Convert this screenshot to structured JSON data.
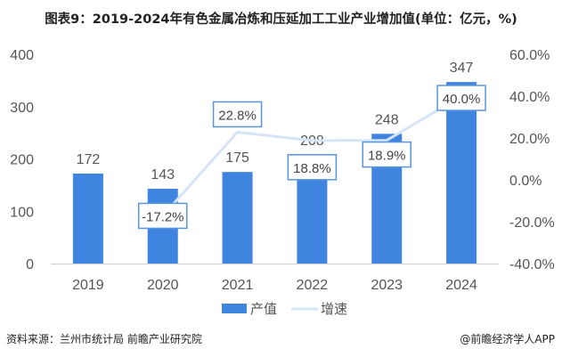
{
  "title": "图表9：2019-2024年有色金属冶炼和压延加工工业产业增加值(单位：亿元，%)",
  "source": "资料来源：兰州市统计局 前瞻产业研究院",
  "credit": "@前瞻经济学人APP",
  "colors": {
    "bar": "#3f85e0",
    "line": "#d6e4f7",
    "label_border": "#5a94e0"
  },
  "chart_data": {
    "type": "bar+line",
    "categories": [
      "2019",
      "2020",
      "2021",
      "2022",
      "2023",
      "2024"
    ],
    "series": [
      {
        "name": "产值",
        "type": "bar",
        "axis": "left",
        "values": [
          172,
          143,
          175,
          208,
          248,
          347
        ],
        "labels": [
          "172",
          "143",
          "175",
          "208",
          "248",
          "347"
        ]
      },
      {
        "name": "增速",
        "type": "line",
        "axis": "right",
        "values": [
          null,
          -17.2,
          22.8,
          18.8,
          18.9,
          40.0
        ],
        "labels": [
          "",
          "-17.2%",
          "22.8%",
          "18.8%",
          "18.9%",
          "40.0%"
        ]
      }
    ],
    "left_axis": {
      "ylim": [
        0,
        400
      ],
      "ticks": [
        "0",
        "100",
        "200",
        "300",
        "400"
      ]
    },
    "right_axis": {
      "ylim": [
        -40,
        60
      ],
      "ticks": [
        "-40.0%",
        "-20.0%",
        "0.0%",
        "20.0%",
        "40.0%",
        "60.0%"
      ]
    },
    "grid": false,
    "legend": "bottom"
  }
}
